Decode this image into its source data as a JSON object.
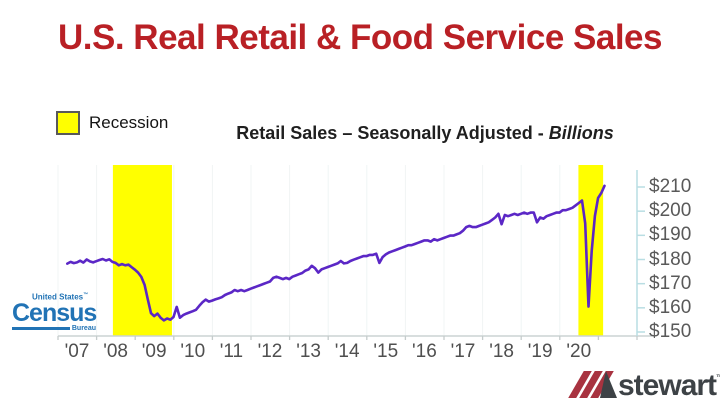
{
  "title": "U.S. Real Retail & Food Service Sales",
  "legend": {
    "label": "Recession",
    "swatch_color": "#ffff00"
  },
  "subtitle": {
    "main": "Retail Sales – Seasonally Adjusted - ",
    "emphasis": "Billions"
  },
  "logos": {
    "census": {
      "top": "United States",
      "tm": "™",
      "main": "Census",
      "sub": "Bureau",
      "color": "#2173b5"
    },
    "stewart": {
      "text": "stewart",
      "tm": "™",
      "stripe_color": "#a83340",
      "text_color": "#3d4246"
    }
  },
  "chart_data": {
    "type": "line",
    "title": "Retail Sales – Seasonally Adjusted - Billions",
    "unit": "USD billions, seasonally adjusted",
    "x_start": "2006-10",
    "frequency": "monthly",
    "line_color": "#5b27c6",
    "recession_color": "#ffff00",
    "recession_bands": [
      {
        "from": 2007.93,
        "to": 2009.46
      },
      {
        "from": 2019.99,
        "to": 2020.63
      }
    ],
    "y_ticks": [
      "$210",
      "$200",
      "$190",
      "$180",
      "$170",
      "$160",
      "$150"
    ],
    "y_tick_values": [
      210,
      200,
      190,
      180,
      170,
      160,
      150
    ],
    "x_tick_labels": [
      "'07",
      "'08",
      "'09",
      "'10",
      "'11",
      "'12",
      "'13",
      "'14",
      "'15",
      "'16",
      "'17",
      "'18",
      "'19",
      "'20"
    ],
    "ylim": [
      150,
      215
    ],
    "legend_position": "top-left",
    "grid": "faint-vertical",
    "values": [
      178.3,
      179.0,
      178.5,
      178.8,
      179.5,
      178.7,
      180.0,
      179.2,
      178.8,
      179.3,
      179.8,
      180.2,
      179.6,
      180.1,
      179.0,
      178.6,
      177.6,
      178.1,
      177.6,
      177.9,
      176.8,
      175.8,
      174.6,
      172.8,
      169.5,
      163.5,
      157.8,
      156.6,
      157.6,
      155.9,
      154.8,
      155.6,
      155.1,
      156.2,
      160.4,
      155.9,
      157.0,
      157.6,
      158.1,
      158.6,
      159.2,
      160.8,
      162.3,
      163.4,
      162.6,
      163.0,
      163.5,
      163.9,
      164.4,
      165.3,
      165.9,
      166.4,
      167.4,
      166.9,
      167.4,
      166.9,
      167.4,
      167.9,
      168.4,
      168.9,
      169.4,
      169.9,
      170.4,
      170.9,
      172.4,
      172.9,
      172.4,
      171.9,
      172.4,
      171.9,
      172.9,
      173.4,
      173.9,
      174.4,
      175.4,
      175.9,
      177.4,
      176.4,
      174.6,
      175.9,
      176.4,
      176.9,
      177.4,
      177.9,
      178.4,
      179.4,
      178.4,
      178.6,
      179.4,
      179.9,
      180.4,
      180.9,
      181.4,
      181.4,
      181.9,
      181.9,
      182.4,
      178.6,
      181.0,
      182.1,
      182.9,
      183.4,
      183.9,
      184.4,
      184.9,
      185.4,
      185.9,
      185.9,
      186.4,
      186.9,
      187.4,
      187.9,
      187.9,
      187.4,
      188.4,
      187.9,
      188.4,
      188.9,
      189.4,
      189.9,
      189.9,
      190.4,
      190.9,
      191.9,
      193.4,
      193.9,
      193.4,
      193.4,
      193.9,
      194.4,
      194.9,
      195.4,
      196.4,
      197.4,
      198.9,
      194.6,
      198.4,
      197.9,
      198.4,
      198.9,
      198.4,
      198.9,
      199.4,
      198.9,
      199.4,
      199.4,
      195.4,
      197.4,
      196.9,
      197.9,
      198.4,
      198.9,
      199.4,
      199.4,
      200.4,
      200.4,
      200.9,
      201.4,
      202.4,
      203.4,
      204.4,
      195.0,
      160.5,
      183.5,
      198.0,
      205.5,
      207.5,
      210.5
    ]
  }
}
